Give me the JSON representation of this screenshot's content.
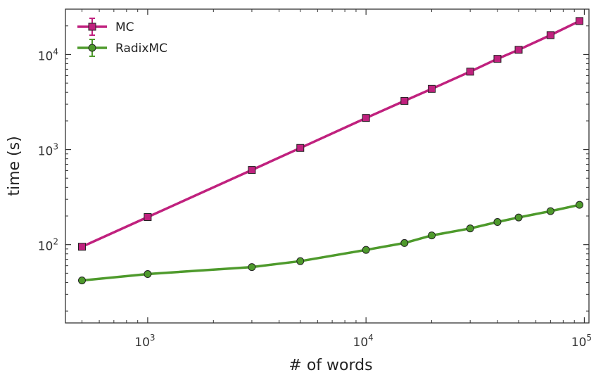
{
  "chart_data": {
    "type": "line",
    "x_scale": "log",
    "y_scale": "log",
    "xlabel": "# of words",
    "ylabel": "time (s)",
    "xlim": [
      420,
      105000
    ],
    "ylim": [
      15,
      30000
    ],
    "x_major_ticks": [
      {
        "value": 1000,
        "base": "10",
        "exp": "3"
      },
      {
        "value": 10000,
        "base": "10",
        "exp": "4"
      },
      {
        "value": 100000,
        "base": "10",
        "exp": "5"
      }
    ],
    "y_major_ticks": [
      {
        "value": 100,
        "base": "10",
        "exp": "2"
      },
      {
        "value": 1000,
        "base": "10",
        "exp": "3"
      },
      {
        "value": 10000,
        "base": "10",
        "exp": "4"
      }
    ],
    "grid": false,
    "legend_position": "top-left",
    "series": [
      {
        "name": "MC",
        "color": "#c0217e",
        "marker": "square",
        "x": [
          500,
          1000,
          3000,
          5000,
          10000,
          15000,
          20000,
          30000,
          40000,
          50000,
          70000,
          95000
        ],
        "y": [
          95,
          195,
          610,
          1040,
          2150,
          3250,
          4350,
          6600,
          9000,
          11200,
          16000,
          22500
        ]
      },
      {
        "name": "RadixMC",
        "color": "#4e9a2c",
        "marker": "circle",
        "x": [
          500,
          1000,
          3000,
          5000,
          10000,
          15000,
          20000,
          30000,
          40000,
          50000,
          70000,
          95000
        ],
        "y": [
          42,
          49,
          58,
          67,
          88,
          104,
          125,
          148,
          173,
          193,
          225,
          262
        ]
      }
    ]
  }
}
